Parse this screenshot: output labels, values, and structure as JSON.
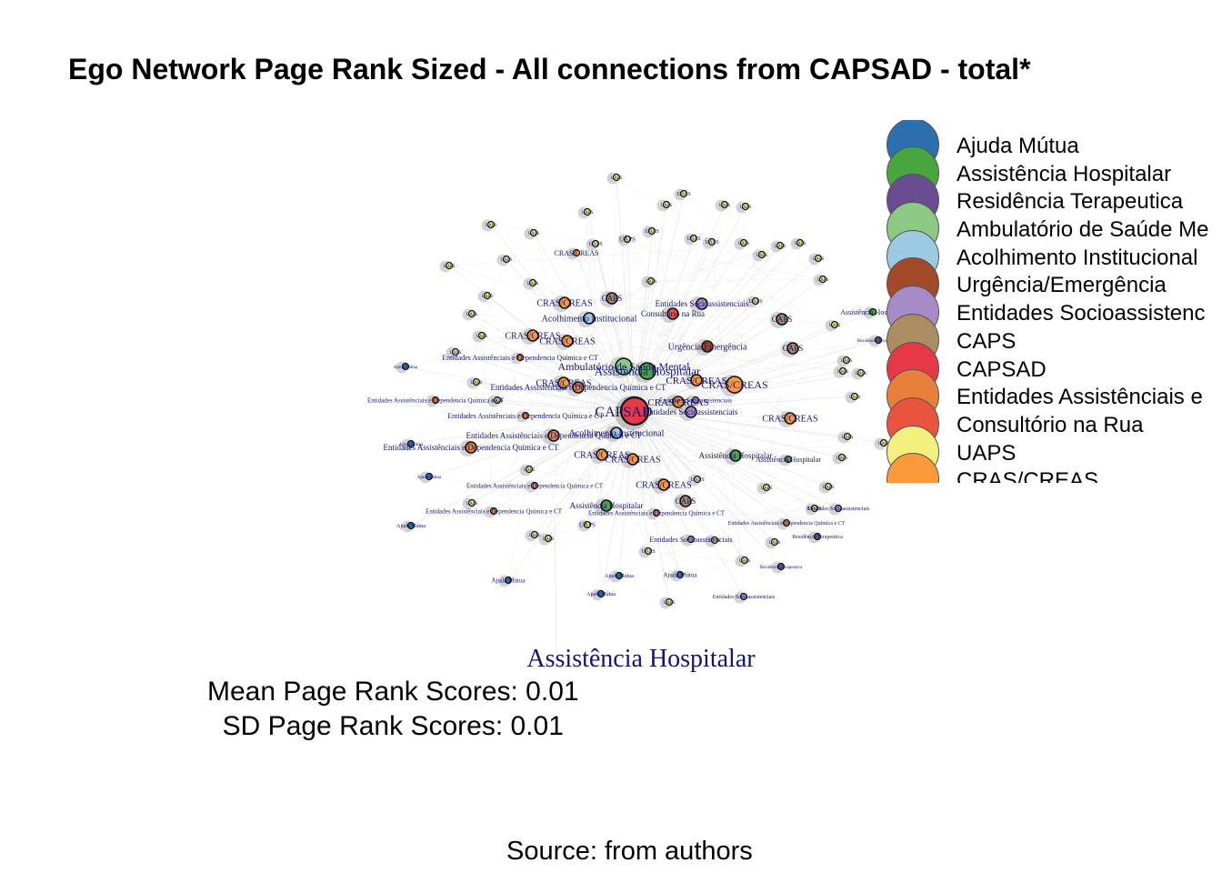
{
  "title": "Ego Network Page Rank Sized - All connections from CAPSAD - total*",
  "legend": [
    {
      "label": "Ajuda Mútua",
      "color": "#2b6fae"
    },
    {
      "label": "Assistência Hospitalar",
      "color": "#49a63e"
    },
    {
      "label": "Residência Terapeutica",
      "color": "#6a4c92"
    },
    {
      "label": "Ambulatório de Saúde Me",
      "color": "#8cc983"
    },
    {
      "label": "Acolhimento Institucional",
      "color": "#9dcae3"
    },
    {
      "label": "Urgência/Emergência",
      "color": "#a24a28"
    },
    {
      "label": "Entidades Socioassistenc",
      "color": "#a68bc6"
    },
    {
      "label": "CAPS",
      "color": "#aa8d63"
    },
    {
      "label": "CAPSAD",
      "color": "#e53945"
    },
    {
      "label": "Entidades Assistênciais e",
      "color": "#e8803b"
    },
    {
      "label": "Consultório na Rua",
      "color": "#e9543e"
    },
    {
      "label": "UAPS",
      "color": "#f3f07d"
    },
    {
      "label": "CRAS/CREAS",
      "color": "#fb9a3a"
    }
  ],
  "network": {
    "center_label": "CAPSAD",
    "highlight_label": "Assistência Hospitalar",
    "node_labels": {
      "uaps": "UAPS",
      "cras": "CRAS/CREAS",
      "caps": "CAPS",
      "ent_socio": "Entidades Socioassistenciais",
      "ent_assist": "Entidades Assistênciais e Dependencia Química e CT",
      "consultorio": "Consultório na Rua",
      "acolhimento": "Acolhimento Institucional",
      "urgencia": "Urgência/Emergência",
      "ambulatorio": "Ambulatório de Saúde Mental",
      "hospitalar": "Assistência Hospitalar",
      "ajuda": "Ajuda Mútua",
      "residencia": "Residência Terapeutica"
    }
  },
  "stats": {
    "mean": "Mean Page Rank Scores: 0.01",
    "sd": "SD Page Rank Scores: 0.01"
  },
  "source": "Source: from authors"
}
